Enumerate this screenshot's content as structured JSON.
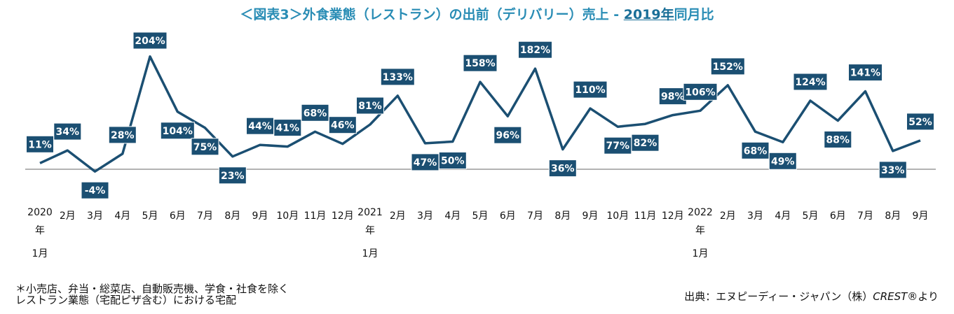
{
  "title": {
    "prefix": "＜図表3＞外食業態（レストラン）の出前（デリバリー）売上 - ",
    "year": "2019年",
    "suffix": "同月比"
  },
  "notes": {
    "line1": "＊小売店、弁当・総菜店、自動販売機、学食・社食を除く",
    "line2": "レストラン業態（宅配ピザ含む）における宅配"
  },
  "source": {
    "prefix": "出典：エヌピーディー・ジャパン（株）",
    "brand": "CREST®",
    "suffix": "より"
  },
  "colors": {
    "line": "#1b4f72",
    "label_bg": "#1b4f72",
    "label_text": "#ffffff",
    "baseline": "#9a9a9a",
    "title": "#2a8db5"
  },
  "chart_data": {
    "type": "line",
    "title": "＜図表3＞外食業態（レストラン）の出前（デリバリー）売上 - 2019年同月比",
    "unit": "%",
    "grid": false,
    "baseline": 0,
    "categories": [
      "2020年1月",
      "2月",
      "3月",
      "4月",
      "5月",
      "6月",
      "7月",
      "8月",
      "9月",
      "10月",
      "11月",
      "12月",
      "2021年1月",
      "2月",
      "3月",
      "4月",
      "5月",
      "6月",
      "7月",
      "8月",
      "9月",
      "10月",
      "11月",
      "12月",
      "2022年1月",
      "2月",
      "3月",
      "4月",
      "5月",
      "6月",
      "7月",
      "8月",
      "9月"
    ],
    "values": [
      11,
      34,
      -4,
      28,
      204,
      104,
      75,
      23,
      44,
      41,
      68,
      46,
      81,
      133,
      47,
      50,
      158,
      96,
      182,
      36,
      110,
      77,
      82,
      98,
      106,
      152,
      68,
      49,
      124,
      88,
      141,
      33,
      52
    ],
    "labels": [
      "11%",
      "34%",
      "-4%",
      "28%",
      "204%",
      "104%",
      "75%",
      "23%",
      "44%",
      "41%",
      "68%",
      "46%",
      "81%",
      "133%",
      "47%",
      "50%",
      "158%",
      "96%",
      "182%",
      "36%",
      "110%",
      "77%",
      "82%",
      "98%",
      "106%",
      "152%",
      "68%",
      "49%",
      "124%",
      "88%",
      "141%",
      "33%",
      "52%"
    ]
  }
}
